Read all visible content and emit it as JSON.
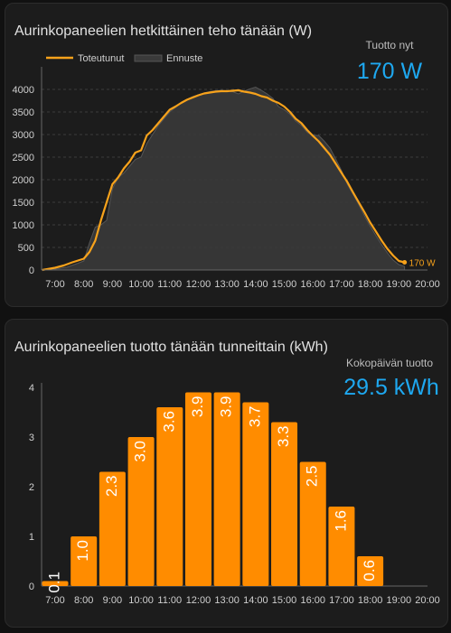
{
  "colors": {
    "actual": "#f7a21b",
    "forecast_fill": "#3a3a3a",
    "bar": "#ff8c00",
    "kpi": "#1ea8f0"
  },
  "power_card": {
    "title": "Aurinkopaneelien hetkittäinen teho tänään (W)",
    "kpi_label": "Tuotto nyt",
    "kpi_value": "170 W"
  },
  "energy_card": {
    "title": "Aurinkopaneelien tuotto tänään tunneittain (kWh)",
    "kpi_label": "Kokopäivän tuotto",
    "kpi_value": "29.5 kWh"
  },
  "chart_data": [
    {
      "type": "line",
      "title": "Aurinkopaneelien hetkittäinen teho tänään (W)",
      "x_tick_labels": [
        "7:00",
        "8:00",
        "9:00",
        "10:00",
        "11:00",
        "12:00",
        "13:00",
        "14:00",
        "15:00",
        "16:00",
        "17:00",
        "18:00",
        "19:00",
        "20:00"
      ],
      "y_ticks": [
        0,
        500,
        1000,
        1500,
        2000,
        2500,
        3000,
        3500,
        4000
      ],
      "xlim": [
        6.55,
        20.0
      ],
      "ylim": [
        0,
        4000
      ],
      "grid": true,
      "legend": "top-left",
      "last_point_label": "170 W",
      "series": [
        {
          "name": "Toteutunut",
          "kind": "line",
          "x": [
            6.55,
            7.0,
            7.3,
            7.6,
            8.0,
            8.2,
            8.4,
            8.6,
            8.8,
            9.0,
            9.2,
            9.4,
            9.6,
            9.8,
            10.0,
            10.2,
            10.4,
            10.6,
            10.8,
            11.0,
            11.2,
            11.4,
            11.6,
            11.8,
            12.0,
            12.2,
            12.4,
            12.6,
            12.8,
            13.0,
            13.2,
            13.4,
            13.6,
            13.8,
            14.0,
            14.2,
            14.4,
            14.6,
            14.8,
            15.0,
            15.2,
            15.4,
            15.6,
            15.8,
            16.0,
            16.2,
            16.4,
            16.6,
            16.8,
            17.0,
            17.2,
            17.4,
            17.6,
            17.8,
            18.0,
            18.2,
            18.4,
            18.6,
            18.8,
            19.0,
            19.2
          ],
          "y": [
            0,
            50,
            100,
            170,
            250,
            400,
            650,
            1100,
            1500,
            1900,
            2050,
            2250,
            2400,
            2600,
            2650,
            2980,
            3100,
            3250,
            3400,
            3550,
            3620,
            3700,
            3770,
            3820,
            3870,
            3910,
            3930,
            3950,
            3960,
            3960,
            3970,
            3980,
            3950,
            3930,
            3900,
            3850,
            3820,
            3750,
            3700,
            3620,
            3500,
            3350,
            3250,
            3100,
            2970,
            2850,
            2700,
            2550,
            2350,
            2150,
            1950,
            1720,
            1500,
            1280,
            1050,
            850,
            650,
            470,
            320,
            200,
            170
          ]
        },
        {
          "name": "Ennuste",
          "kind": "area",
          "x": [
            6.55,
            7.0,
            7.4,
            7.8,
            8.0,
            8.2,
            8.4,
            8.6,
            8.8,
            9.0,
            9.2,
            9.4,
            9.6,
            9.8,
            10.0,
            10.2,
            10.4,
            10.6,
            10.8,
            11.0,
            11.2,
            11.4,
            11.6,
            11.8,
            12.0,
            12.2,
            12.4,
            12.6,
            12.8,
            13.0,
            13.2,
            13.4,
            13.6,
            13.8,
            14.0,
            14.2,
            14.4,
            14.6,
            14.8,
            15.0,
            15.2,
            15.4,
            15.6,
            15.8,
            16.0,
            16.2,
            16.4,
            16.6,
            16.8,
            17.0,
            17.2,
            17.4,
            17.6,
            17.8,
            18.0,
            18.2,
            18.4,
            18.6,
            18.8,
            19.0,
            19.2
          ],
          "y": [
            0,
            20,
            60,
            150,
            200,
            600,
            950,
            1000,
            1100,
            1800,
            2050,
            2150,
            2300,
            2450,
            2500,
            2800,
            3000,
            3200,
            3350,
            3500,
            3600,
            3700,
            3780,
            3840,
            3880,
            3920,
            3950,
            3970,
            3980,
            3970,
            3950,
            3900,
            3960,
            4010,
            4050,
            3980,
            3900,
            3800,
            3620,
            3550,
            3450,
            3300,
            3200,
            3050,
            2980,
            2980,
            2850,
            2700,
            2450,
            2200,
            1900,
            1680,
            1450,
            1200,
            970,
            760,
            560,
            380,
            220,
            120,
            80
          ]
        }
      ]
    },
    {
      "type": "bar",
      "title": "Aurinkopaneelien tuotto tänään tunneittain (kWh)",
      "x_tick_labels": [
        "7:00",
        "8:00",
        "9:00",
        "10:00",
        "11:00",
        "12:00",
        "13:00",
        "14:00",
        "15:00",
        "16:00",
        "17:00",
        "18:00",
        "19:00",
        "20:00"
      ],
      "categories": [
        "7:00",
        "8:00",
        "9:00",
        "10:00",
        "11:00",
        "12:00",
        "13:00",
        "14:00",
        "15:00",
        "16:00",
        "17:00",
        "18:00",
        "19:00"
      ],
      "values": [
        0.1,
        1.0,
        2.3,
        3.0,
        3.6,
        3.9,
        3.9,
        3.7,
        3.3,
        2.5,
        1.6,
        0.6,
        0
      ],
      "value_labels": [
        "0.1",
        "1.0",
        "2.3",
        "3.0",
        "3.6",
        "3.9",
        "3.9",
        "3.7",
        "3.3",
        "2.5",
        "1.6",
        "0.6",
        ""
      ],
      "y_ticks": [
        0,
        1,
        2,
        3,
        4
      ],
      "ylim": [
        0,
        4
      ],
      "grid": false
    }
  ]
}
